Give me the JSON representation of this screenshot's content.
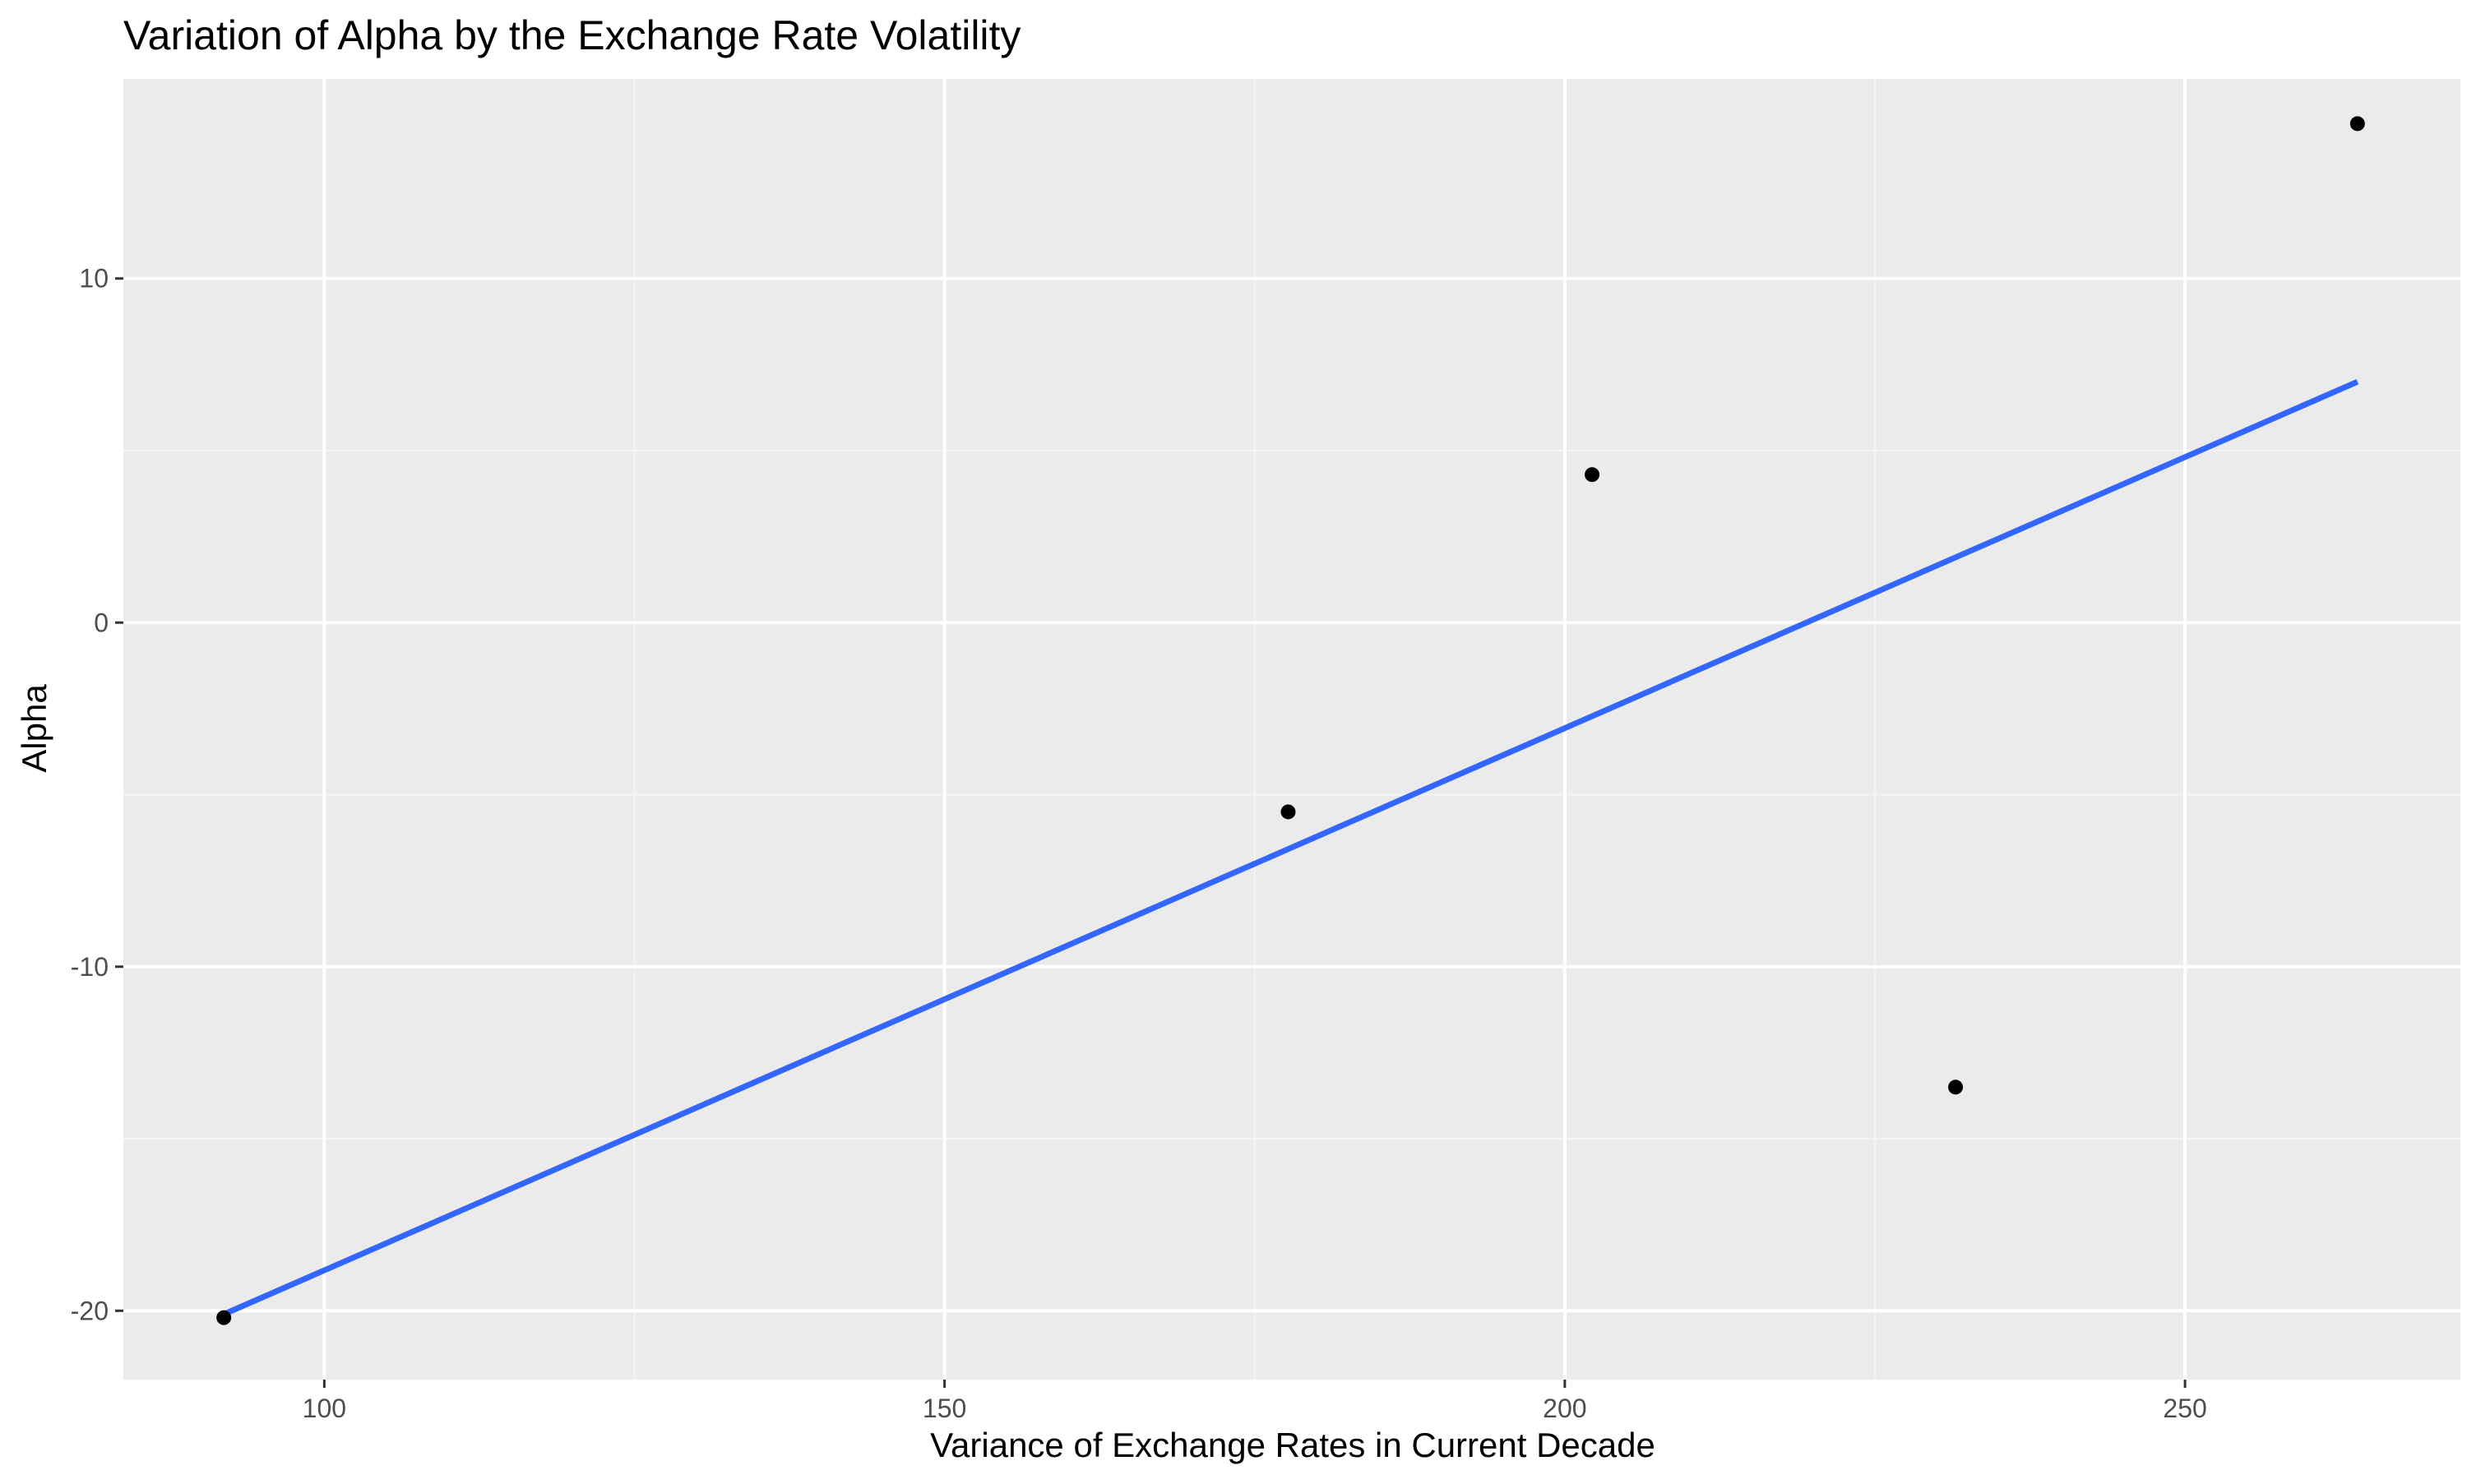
{
  "chart_data": {
    "type": "scatter",
    "title": "Variation of Alpha by the Exchange Rate Volatility",
    "xlabel": "Variance of Exchange Rates in Current Decade",
    "ylabel": "Alpha",
    "xlim": [
      83.8,
      272.2
    ],
    "ylim": [
      -22,
      15.8
    ],
    "x_ticks": [
      100,
      150,
      200,
      250
    ],
    "x_tick_labels": [
      "100",
      "150",
      "200",
      "250"
    ],
    "x_minor_ticks": [
      125,
      175,
      225
    ],
    "y_ticks": [
      -20,
      -10,
      0,
      10
    ],
    "y_tick_labels": [
      "-20",
      "-10",
      "0",
      "10"
    ],
    "y_minor_ticks": [
      -15,
      -5,
      5
    ],
    "grid": true,
    "legend": "none",
    "series": [
      {
        "type": "scatter",
        "color": "#000000",
        "points": [
          {
            "x": 91.9,
            "y": -20.2
          },
          {
            "x": 177.7,
            "y": -5.5
          },
          {
            "x": 202.2,
            "y": 4.3
          },
          {
            "x": 231.5,
            "y": -13.5
          },
          {
            "x": 263.9,
            "y": 14.5
          }
        ]
      },
      {
        "type": "line",
        "color": "#3366FF",
        "points": [
          {
            "x": 91.9,
            "y": -20.1
          },
          {
            "x": 263.9,
            "y": 7.0
          }
        ]
      }
    ],
    "colors": {
      "panel_background": "#EBEBEB",
      "grid_major": "#FFFFFF",
      "grid_minor": "#F5F5F5",
      "point": "#000000",
      "fit_line": "#3366FF"
    }
  }
}
